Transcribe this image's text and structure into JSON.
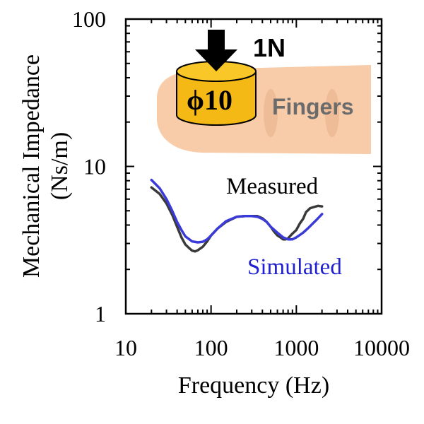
{
  "chart_data": {
    "type": "line",
    "xscale": "log",
    "yscale": "log",
    "xlim": [
      10,
      10000
    ],
    "ylim": [
      1,
      100
    ],
    "xlabel": "Frequency (Hz)",
    "ylabel_line1": "Mechanical Impedance",
    "ylabel_line2": "(Ns/m)",
    "x_ticks": [
      {
        "value": 10,
        "label": "10"
      },
      {
        "value": 100,
        "label": "100"
      },
      {
        "value": 1000,
        "label": "1000"
      },
      {
        "value": 10000,
        "label": "10000"
      }
    ],
    "y_ticks": [
      {
        "value": 1,
        "label": "1"
      },
      {
        "value": 10,
        "label": "10"
      },
      {
        "value": 100,
        "label": "100"
      }
    ],
    "series": [
      {
        "name": "Measured",
        "color": "#3a3a3a",
        "points": [
          [
            20,
            7.2
          ],
          [
            25,
            6.5
          ],
          [
            30,
            5.6
          ],
          [
            35,
            4.7
          ],
          [
            40,
            3.9
          ],
          [
            45,
            3.3
          ],
          [
            50,
            2.95
          ],
          [
            55,
            2.8
          ],
          [
            60,
            2.68
          ],
          [
            65,
            2.65
          ],
          [
            70,
            2.7
          ],
          [
            80,
            2.85
          ],
          [
            90,
            3.1
          ],
          [
            100,
            3.4
          ],
          [
            120,
            3.8
          ],
          [
            150,
            4.2
          ],
          [
            200,
            4.55
          ],
          [
            250,
            4.6
          ],
          [
            300,
            4.6
          ],
          [
            350,
            4.6
          ],
          [
            400,
            4.45
          ],
          [
            450,
            4.2
          ],
          [
            500,
            3.9
          ],
          [
            550,
            3.6
          ],
          [
            600,
            3.4
          ],
          [
            650,
            3.3
          ],
          [
            700,
            3.2
          ],
          [
            750,
            3.2
          ],
          [
            800,
            3.25
          ],
          [
            900,
            3.5
          ],
          [
            1000,
            3.7
          ],
          [
            1100,
            4.1
          ],
          [
            1200,
            4.4
          ],
          [
            1300,
            4.9
          ],
          [
            1450,
            5.2
          ],
          [
            1600,
            5.3
          ],
          [
            1800,
            5.4
          ],
          [
            2000,
            5.35
          ]
        ]
      },
      {
        "name": "Simulated",
        "color": "#3a3ad8",
        "points": [
          [
            20,
            8.1
          ],
          [
            25,
            7.1
          ],
          [
            30,
            6.0
          ],
          [
            35,
            5.0
          ],
          [
            40,
            4.2
          ],
          [
            45,
            3.7
          ],
          [
            50,
            3.35
          ],
          [
            60,
            3.1
          ],
          [
            70,
            3.05
          ],
          [
            80,
            3.08
          ],
          [
            90,
            3.2
          ],
          [
            100,
            3.4
          ],
          [
            120,
            3.8
          ],
          [
            150,
            4.25
          ],
          [
            200,
            4.55
          ],
          [
            250,
            4.6
          ],
          [
            300,
            4.6
          ],
          [
            350,
            4.55
          ],
          [
            400,
            4.4
          ],
          [
            450,
            4.2
          ],
          [
            500,
            3.9
          ],
          [
            600,
            3.55
          ],
          [
            700,
            3.3
          ],
          [
            800,
            3.2
          ],
          [
            900,
            3.2
          ],
          [
            1000,
            3.3
          ],
          [
            1200,
            3.55
          ],
          [
            1400,
            3.85
          ],
          [
            1700,
            4.3
          ],
          [
            2000,
            4.75
          ]
        ]
      }
    ],
    "annotations": {
      "measured_label": "Measured",
      "simulated_label": "Simulated",
      "fingers_label": "Fingers",
      "force_label": "1N",
      "diameter_label": "ϕ10"
    },
    "colors": {
      "finger": "#f8c9a4",
      "finger_shade": "#e8b08a",
      "cylinder": "#f5b916",
      "cylinder_top": "#f9c728",
      "arrow": "#000000"
    }
  }
}
